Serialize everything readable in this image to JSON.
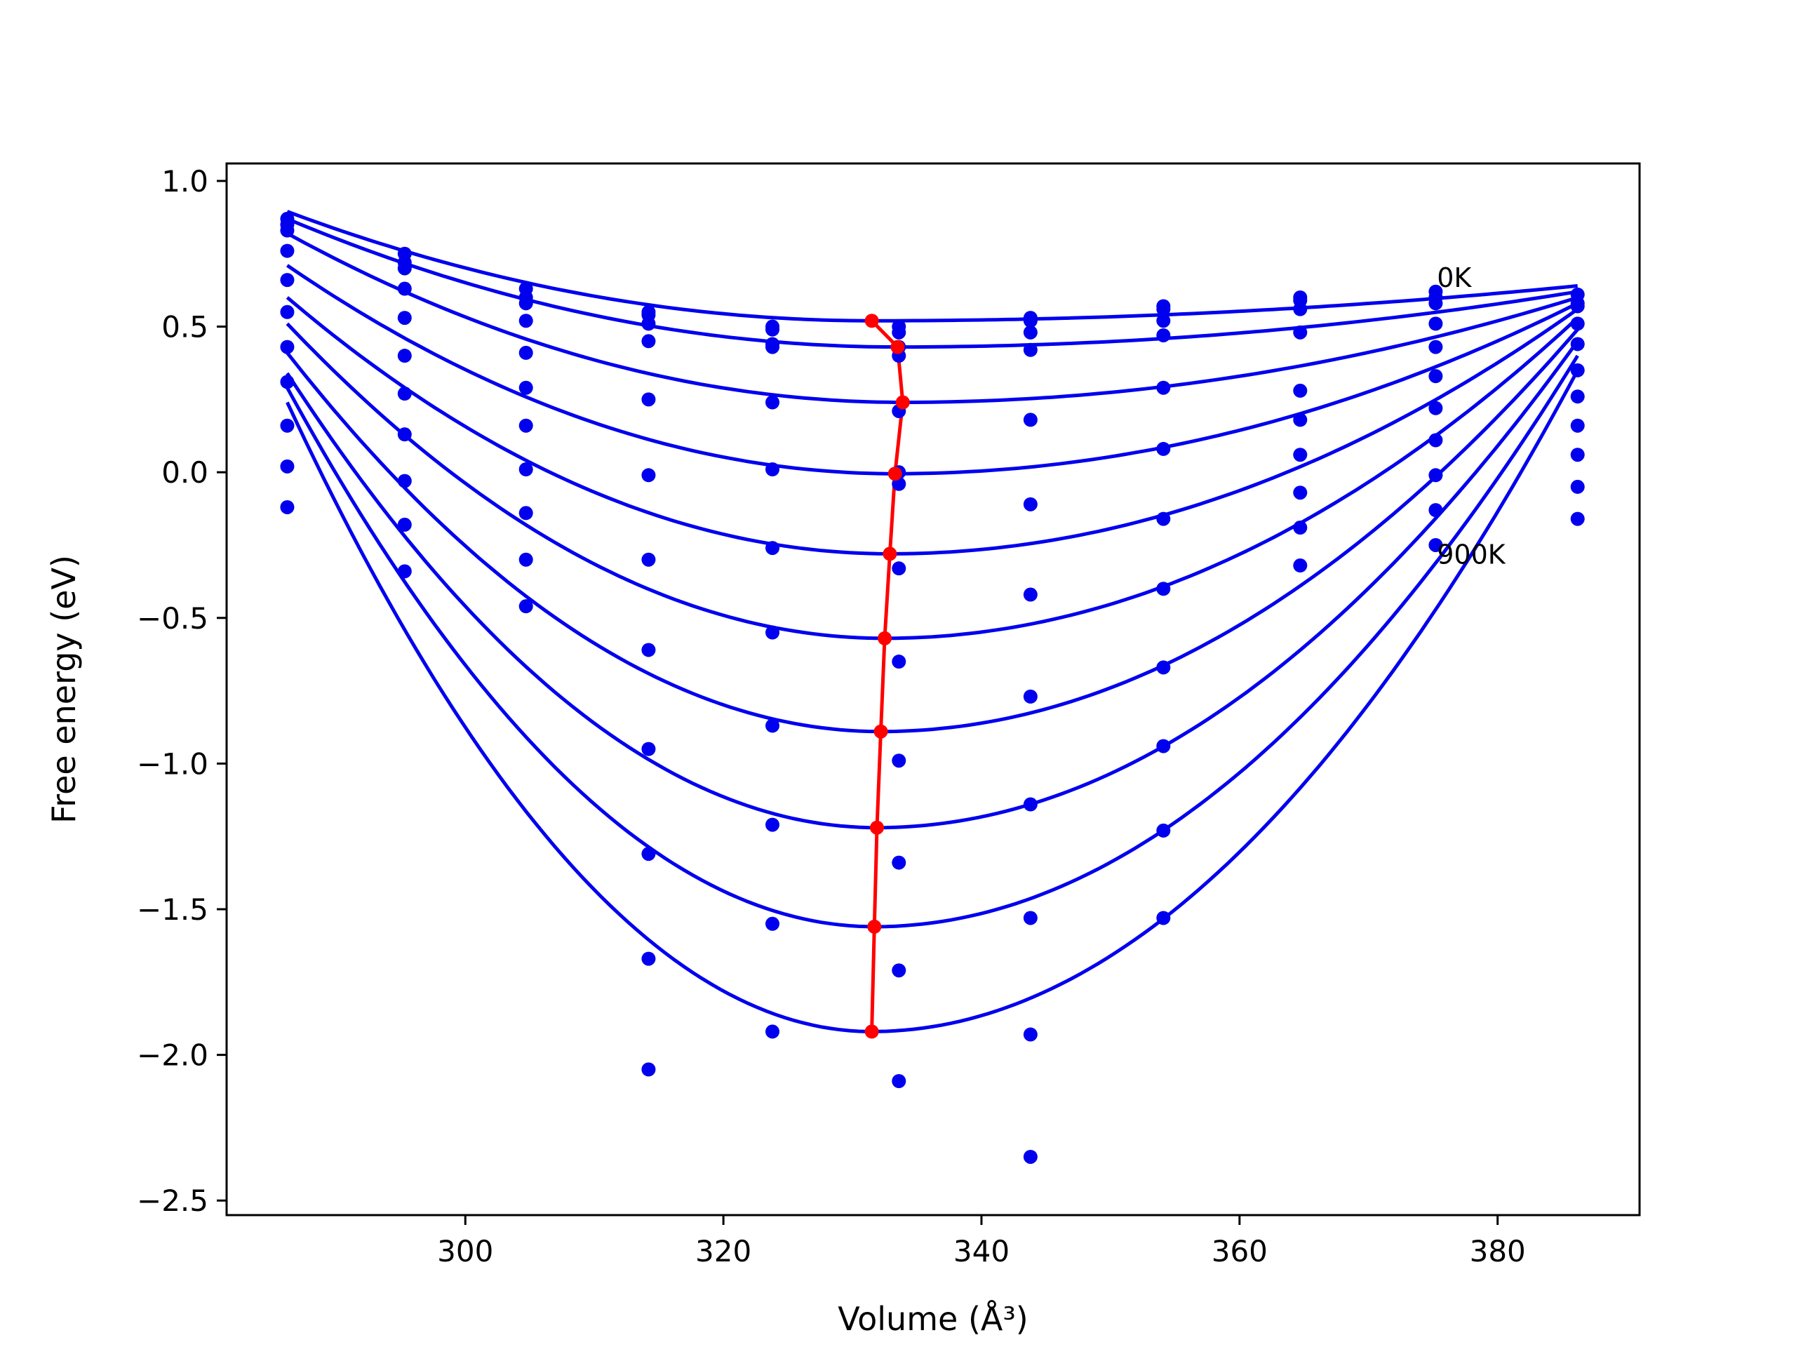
{
  "chart_data": {
    "type": "scatter",
    "title": "",
    "xlabel": "Volume (Å³)",
    "ylabel": "Free energy (eV)",
    "xlim": [
      281.5,
      391
    ],
    "ylim": [
      -2.55,
      1.06
    ],
    "x_ticks": [
      300,
      320,
      340,
      360,
      380
    ],
    "y_ticks": [
      1.0,
      0.5,
      0.0,
      -0.5,
      -1.0,
      -1.5,
      -2.0,
      -2.5
    ],
    "x_tick_labels": [
      "300",
      "320",
      "340",
      "360",
      "380"
    ],
    "y_tick_labels": [
      "1.0",
      "0.5",
      "0.0",
      "−0.5",
      "−1.0",
      "−1.5",
      "−2.0",
      "−2.5"
    ],
    "grid": false,
    "colors": {
      "data": "#0000ee",
      "minimum": "#ff0000",
      "axes": "#000000"
    },
    "annotations": [
      {
        "text": "0K",
        "x": 375.3,
        "y": 0.67
      },
      {
        "text": "900K",
        "x": 375.3,
        "y": -0.28
      }
    ],
    "volumes": [
      286.2,
      295.3,
      304.7,
      314.2,
      323.8,
      333.6,
      343.8,
      354.1,
      364.7,
      375.2,
      386.2
    ],
    "series": [
      {
        "values": [
          0.87,
          0.75,
          0.63,
          0.55,
          0.5,
          0.5,
          0.53,
          0.57,
          0.6,
          0.62,
          0.61
        ],
        "fit": [
          0.895,
          0.52,
          0.64
        ]
      },
      {
        "values": [
          0.85,
          0.72,
          0.6,
          0.54,
          0.49,
          0.48,
          0.52,
          0.56,
          0.59,
          0.6,
          0.58
        ],
        "fit": [
          0.87,
          0.43,
          0.62
        ]
      },
      {
        "values": [
          0.83,
          0.7,
          0.58,
          0.51,
          0.44,
          0.43,
          0.48,
          0.52,
          0.56,
          0.58,
          0.57
        ],
        "fit": [
          0.82,
          0.24,
          0.6
        ]
      },
      {
        "values": [
          0.76,
          0.63,
          0.52,
          0.45,
          0.43,
          0.4,
          0.42,
          0.47,
          0.48,
          0.51,
          0.51
        ],
        "fit": [
          0.71,
          -0.005,
          0.58
        ]
      },
      {
        "values": [
          0.66,
          0.53,
          0.41,
          0.25,
          0.24,
          0.21,
          0.18,
          0.29,
          0.28,
          0.43,
          0.44
        ],
        "fit": [
          0.6,
          -0.28,
          0.56
        ]
      },
      {
        "values": [
          0.55,
          0.4,
          0.29,
          -0.01,
          0.01,
          0.0,
          -0.11,
          0.08,
          0.18,
          0.33,
          0.35
        ],
        "fit": [
          0.51,
          -0.57,
          0.53
        ]
      },
      {
        "values": [
          0.43,
          0.27,
          0.16,
          -0.3,
          -0.26,
          -0.04,
          -0.42,
          -0.16,
          0.06,
          0.22,
          0.26
        ],
        "fit": [
          0.41,
          -0.89,
          0.49
        ]
      },
      {
        "values": [
          0.31,
          0.13,
          0.01,
          -0.61,
          -0.55,
          -0.33,
          -0.77,
          -0.4,
          -0.07,
          0.11,
          0.16
        ],
        "fit": [
          0.34,
          -1.22,
          0.45
        ]
      },
      {
        "values": [
          0.16,
          -0.03,
          -0.14,
          -0.95,
          -0.87,
          -0.65,
          -1.14,
          -0.67,
          -0.19,
          -0.01,
          0.06
        ],
        "fit": [
          0.29,
          -1.56,
          0.4
        ]
      },
      {
        "values": [
          0.02,
          -0.18,
          -0.3,
          -1.31,
          -1.21,
          -0.99,
          -1.53,
          -0.94,
          -0.32,
          -0.13,
          -0.05
        ],
        "fit": [
          0.24,
          -1.92,
          0.35
        ]
      },
      {
        "values": [
          -0.12,
          -0.34,
          -0.46,
          -1.67,
          -1.55,
          -1.34,
          -1.93,
          -1.23,
          null,
          -0.25,
          -0.16
        ]
      },
      {
        "values": [
          null,
          null,
          null,
          -2.05,
          -1.92,
          -1.71,
          -2.35,
          -1.53,
          null,
          null,
          null
        ]
      },
      {
        "values": [
          null,
          null,
          null,
          null,
          null,
          -2.09,
          null,
          null,
          null,
          null,
          null
        ]
      }
    ],
    "minima": {
      "x": [
        331.5,
        333.5,
        333.9,
        333.3,
        332.9,
        332.5,
        332.2,
        331.9,
        331.7,
        331.5
      ],
      "y": [
        0.52,
        0.43,
        0.24,
        -0.005,
        -0.28,
        -0.57,
        -0.89,
        -1.22,
        -1.56,
        -1.92
      ]
    }
  }
}
